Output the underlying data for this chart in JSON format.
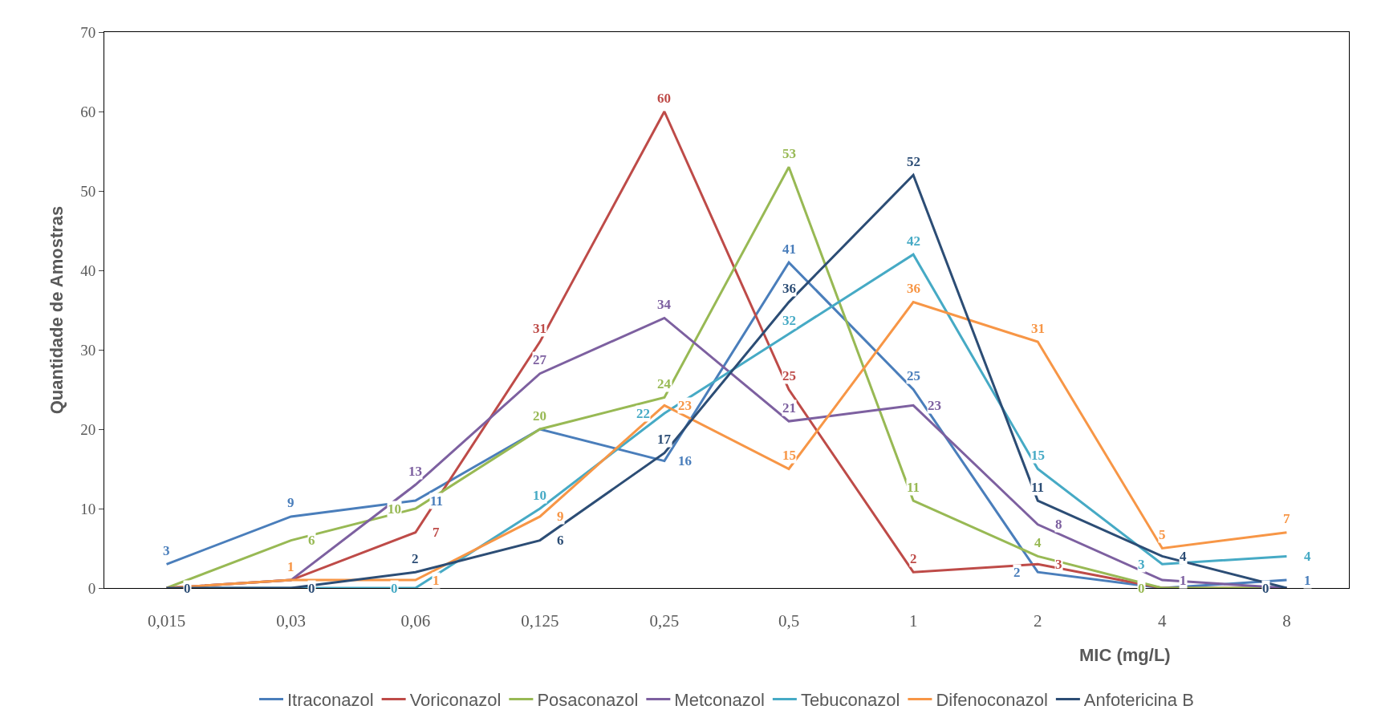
{
  "chart_data": {
    "type": "line",
    "xlabel": "MIC (mg/L)",
    "ylabel": "Quantidade de Amostras",
    "categories": [
      "0,015",
      "0,03",
      "0,06",
      "0,125",
      "0,25",
      "0,5",
      "1",
      "2",
      "4",
      "8"
    ],
    "series": [
      {
        "name": "Itraconazol",
        "color": "#4a7ebb",
        "values": [
          3,
          9,
          11,
          20,
          16,
          41,
          25,
          2,
          0,
          1
        ],
        "value_labels": [
          "3",
          "9",
          "11",
          null,
          "16",
          "41",
          "25",
          "2",
          null,
          "1"
        ]
      },
      {
        "name": "Voriconazol",
        "color": "#be4b48",
        "values": [
          0,
          1,
          7,
          31,
          60,
          25,
          2,
          3,
          0,
          0
        ],
        "value_labels": [
          null,
          null,
          "7",
          "31",
          "60",
          "25",
          "2",
          "3",
          null,
          null
        ]
      },
      {
        "name": "Posaconazol",
        "color": "#98b954",
        "values": [
          0,
          6,
          10,
          20,
          24,
          53,
          11,
          4,
          0,
          0
        ],
        "value_labels": [
          null,
          "6",
          "10",
          "20",
          "24",
          "53",
          "11",
          "4",
          "0",
          null
        ]
      },
      {
        "name": "Metconazol",
        "color": "#7d60a0",
        "values": [
          0,
          1,
          13,
          27,
          34,
          21,
          23,
          8,
          1,
          0
        ],
        "value_labels": [
          null,
          null,
          "13",
          "27",
          "34",
          "21",
          "23",
          "8",
          "1",
          null
        ]
      },
      {
        "name": "Tebuconazol",
        "color": "#46aac5",
        "values": [
          0,
          0,
          0,
          10,
          22,
          32,
          42,
          15,
          3,
          4
        ],
        "value_labels": [
          null,
          null,
          "0",
          "10",
          "22",
          "32",
          "42",
          "15",
          "3",
          "4"
        ]
      },
      {
        "name": "Difenoconazol",
        "color": "#f79646",
        "values": [
          0,
          1,
          1,
          9,
          23,
          15,
          36,
          31,
          5,
          7
        ],
        "value_labels": [
          null,
          "1",
          "1",
          "9",
          "23",
          "15",
          "36",
          "31",
          "5",
          "7"
        ]
      },
      {
        "name": "Anfotericina B",
        "color": "#2c4d75",
        "values": [
          0,
          0,
          2,
          6,
          17,
          36,
          52,
          11,
          4,
          0
        ],
        "value_labels": [
          "0",
          "0",
          "2",
          "6",
          "17",
          "36",
          "52",
          "11",
          "4",
          "0"
        ]
      }
    ],
    "ylim": [
      0,
      70
    ],
    "yticks": [
      0,
      10,
      20,
      30,
      40,
      50,
      60,
      70
    ],
    "legend": "bottom",
    "marker": "none",
    "line_style": "solid"
  }
}
